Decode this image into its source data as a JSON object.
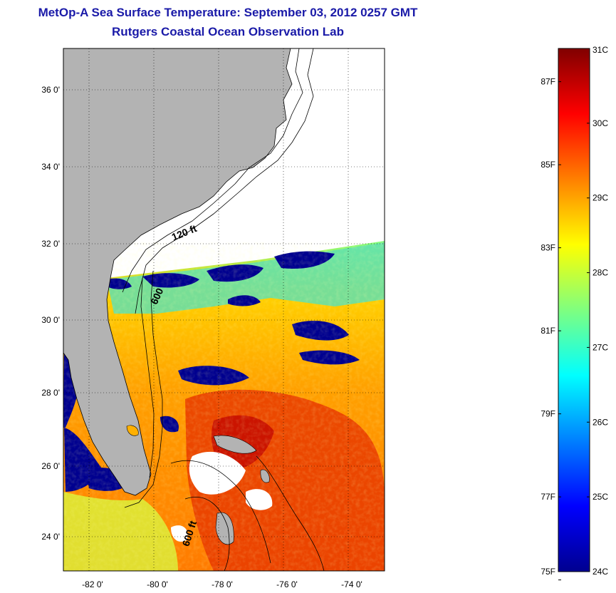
{
  "header": {
    "title": "MetOp-A Sea Surface Temperature:  September 03, 2012 0257 GMT",
    "subtitle": "Rutgers Coastal Ocean Observation Lab"
  },
  "map": {
    "lat_ticks": [
      "36 0'",
      "34 0'",
      "32 0'",
      "30 0'",
      "28 0'",
      "26 0'",
      "24 0'"
    ],
    "lon_ticks": [
      "-82 0'",
      "-80 0'",
      "-78 0'",
      "-76 0'",
      "-74 0'"
    ],
    "contour_labels": [
      "120 ft",
      "600",
      "600 ft"
    ],
    "colors": {
      "land": "#b3b3b3",
      "no_data": "#ffffff",
      "cold": "#00008f",
      "warm": "#ff6a00",
      "hot": "#d01000"
    }
  },
  "colorbar": {
    "celsius_labels": [
      "31C",
      "30C",
      "29C",
      "28C",
      "27C",
      "26C",
      "25C",
      "24C"
    ],
    "fahrenheit_labels": [
      "87F",
      "85F",
      "83F",
      "81F",
      "79F",
      "77F",
      "75F"
    ],
    "range_c": [
      24,
      31
    ],
    "colormap": "jet"
  }
}
